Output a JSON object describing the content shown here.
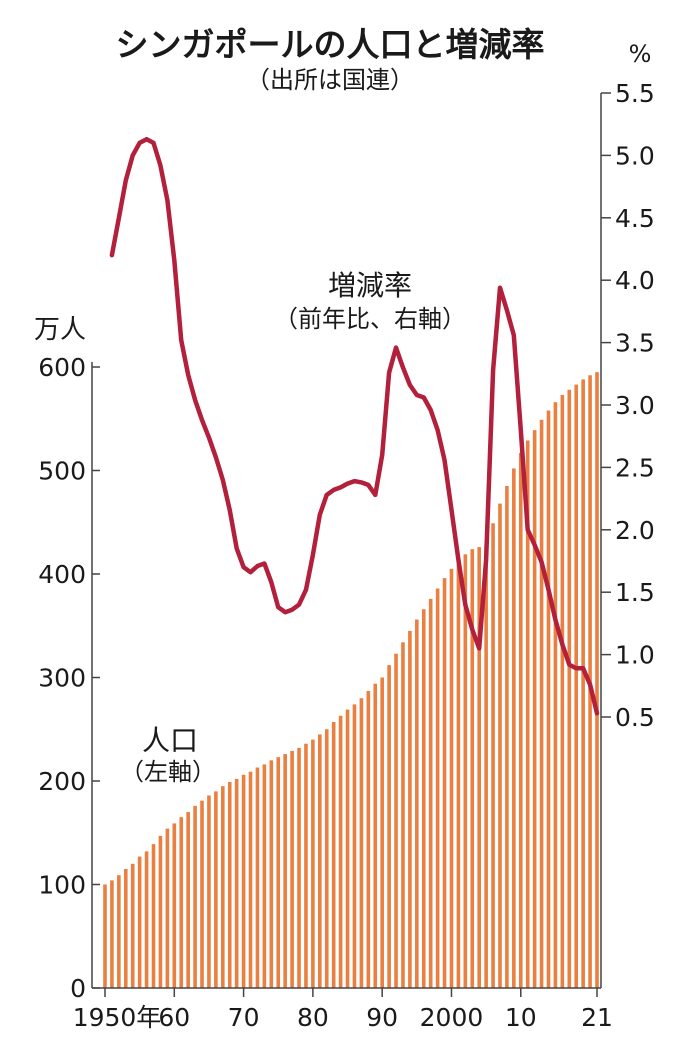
{
  "chart_data": {
    "type": "bar+line",
    "title": "シンガポールの人口と増減率",
    "subtitle": "（出所は国連）",
    "left_axis": {
      "unit": "万人",
      "ylim": [
        0,
        600
      ],
      "ticks": [
        "0",
        "100",
        "200",
        "300",
        "400",
        "500",
        "600"
      ]
    },
    "right_axis": {
      "unit": "%",
      "ylim": [
        0.5,
        5.5
      ],
      "ticks": [
        "0.5",
        "1.0",
        "1.5",
        "2.0",
        "2.5",
        "3.0",
        "3.5",
        "4.0",
        "4.5",
        "5.0",
        "5.5"
      ]
    },
    "x_axis": {
      "range": [
        1950,
        2021
      ],
      "tick_years": [
        1950,
        1960,
        1970,
        1980,
        1990,
        2000,
        2010,
        2021
      ],
      "tick_labels": [
        "1950年",
        "60",
        "70",
        "80",
        "90",
        "2000",
        "10",
        "21"
      ]
    },
    "grid": false,
    "colors": {
      "bars": "#e97f40",
      "line": "#b3203c"
    },
    "bar_series": {
      "label": "人口",
      "label_axis": "（左軸）",
      "years_start": 1950,
      "values": [
        100,
        104,
        109,
        115,
        120,
        127,
        132,
        139,
        147,
        154,
        159,
        165,
        170,
        176,
        181,
        186,
        190,
        195,
        199,
        202,
        206,
        209,
        213,
        216,
        220,
        223,
        226,
        229,
        232,
        236,
        240,
        245,
        250,
        257,
        263,
        269,
        274,
        280,
        287,
        294,
        300,
        312,
        323,
        334,
        345,
        356,
        366,
        376,
        386,
        396,
        405,
        413,
        419,
        424,
        426,
        428,
        449,
        468,
        485,
        502,
        517,
        529,
        539,
        549,
        558,
        566,
        573,
        578,
        583,
        588,
        592,
        595
      ]
    },
    "line_series": {
      "label": "増減率",
      "label_axis": "（前年比、右軸）",
      "years_start": 1951,
      "values": [
        4.2,
        4.5,
        4.8,
        5.0,
        5.1,
        5.13,
        5.1,
        4.92,
        4.64,
        4.16,
        3.52,
        3.24,
        3.04,
        2.88,
        2.74,
        2.58,
        2.4,
        2.16,
        1.85,
        1.7,
        1.66,
        1.71,
        1.73,
        1.58,
        1.38,
        1.34,
        1.36,
        1.4,
        1.52,
        1.8,
        2.12,
        2.28,
        2.32,
        2.34,
        2.37,
        2.39,
        2.38,
        2.36,
        2.28,
        2.6,
        3.26,
        3.46,
        3.3,
        3.16,
        3.08,
        3.06,
        2.96,
        2.8,
        2.56,
        2.16,
        1.76,
        1.4,
        1.2,
        1.05,
        1.76,
        3.28,
        3.94,
        3.76,
        3.56,
        2.8,
        2.0,
        1.88,
        1.74,
        1.52,
        1.28,
        1.08,
        0.92,
        0.89,
        0.89,
        0.76,
        0.53
      ]
    }
  }
}
